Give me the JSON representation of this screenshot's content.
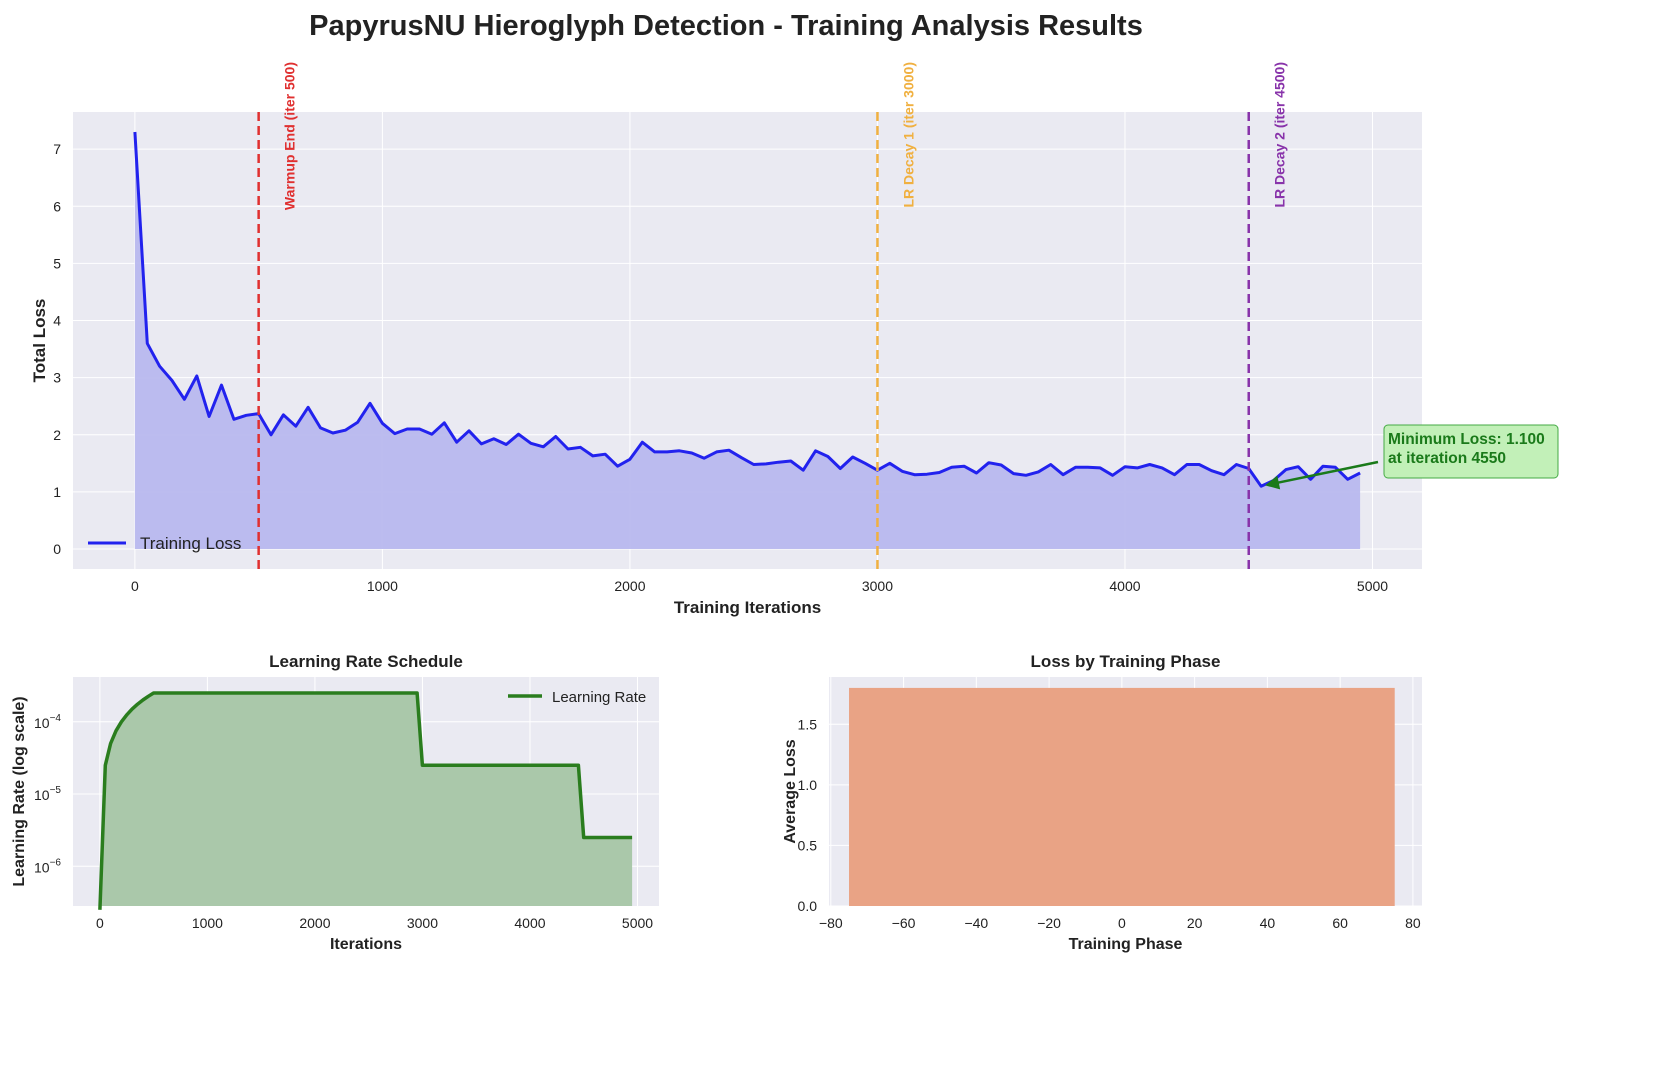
{
  "figure": {
    "title": "PapyrusNU Hieroglyph Detection - Training Analysis Results"
  },
  "chart_data": [
    {
      "type": "area",
      "xlabel": "Training Iterations",
      "ylabel": "Total Loss",
      "xlim": [
        -250,
        5200
      ],
      "ylim": [
        -0.35,
        7.65
      ],
      "xticks": [
        0,
        1000,
        2000,
        3000,
        4000,
        5000
      ],
      "yticks": [
        0,
        1,
        2,
        3,
        4,
        5,
        6,
        7
      ],
      "grid": true,
      "legend": {
        "placement": "lower-left",
        "entries": [
          "Training Loss"
        ]
      },
      "series": [
        {
          "name": "Training Loss",
          "color": "#2222ee",
          "fill": "#b8b8ee",
          "x": [
            0,
            50,
            100,
            150,
            200,
            250,
            300,
            350,
            400,
            450,
            500,
            550,
            600,
            650,
            700,
            750,
            800,
            850,
            900,
            950,
            1000,
            1050,
            1100,
            1150,
            1200,
            1250,
            1300,
            1350,
            1400,
            1450,
            1500,
            1550,
            1600,
            1650,
            1700,
            1750,
            1800,
            1850,
            1900,
            1950,
            2000,
            2050,
            2100,
            2150,
            2200,
            2250,
            2300,
            2350,
            2400,
            2450,
            2500,
            2550,
            2600,
            2650,
            2700,
            2750,
            2800,
            2850,
            2900,
            2950,
            3000,
            3050,
            3100,
            3150,
            3200,
            3250,
            3300,
            3350,
            3400,
            3450,
            3500,
            3550,
            3600,
            3650,
            3700,
            3750,
            3800,
            3850,
            3900,
            3950,
            4000,
            4050,
            4100,
            4150,
            4200,
            4250,
            4300,
            4350,
            4400,
            4450,
            4500,
            4550,
            4600,
            4650,
            4700,
            4750,
            4800,
            4850,
            4900,
            4950
          ],
          "values": [
            7.3,
            3.6,
            3.2,
            2.95,
            2.62,
            3.03,
            2.32,
            2.87,
            2.27,
            2.34,
            2.37,
            2.0,
            2.35,
            2.15,
            2.48,
            2.12,
            2.03,
            2.08,
            2.22,
            2.55,
            2.2,
            2.02,
            2.1,
            2.1,
            2.01,
            2.21,
            1.87,
            2.07,
            1.84,
            1.93,
            1.83,
            2.01,
            1.85,
            1.79,
            1.97,
            1.75,
            1.78,
            1.63,
            1.66,
            1.45,
            1.57,
            1.87,
            1.7,
            1.7,
            1.72,
            1.68,
            1.59,
            1.7,
            1.73,
            1.6,
            1.48,
            1.49,
            1.52,
            1.54,
            1.38,
            1.72,
            1.62,
            1.41,
            1.61,
            1.5,
            1.38,
            1.5,
            1.36,
            1.3,
            1.31,
            1.34,
            1.43,
            1.45,
            1.33,
            1.51,
            1.47,
            1.32,
            1.29,
            1.35,
            1.48,
            1.3,
            1.43,
            1.43,
            1.42,
            1.29,
            1.44,
            1.42,
            1.48,
            1.42,
            1.3,
            1.48,
            1.48,
            1.37,
            1.3,
            1.48,
            1.41,
            1.1,
            1.2,
            1.39,
            1.44,
            1.22,
            1.45,
            1.43,
            1.22,
            1.33
          ]
        }
      ],
      "vlines": [
        {
          "x": 500,
          "label": "Warmup End (iter 500)",
          "color": "#e03030"
        },
        {
          "x": 3000,
          "label": "LR Decay 1 (iter 3000)",
          "color": "#f0b040"
        },
        {
          "x": 4500,
          "label": "LR Decay 2 (iter 4500)",
          "color": "#8833aa"
        }
      ],
      "annotation": {
        "line1": "Minimum Loss: 1.100",
        "line2": "at iteration 4550",
        "point": {
          "x": 4550,
          "y": 1.1
        },
        "text_color": "#1a7a1a",
        "box_fill": "#c2f0b8",
        "box_border": "#44aa44"
      }
    },
    {
      "type": "area",
      "title": "Learning Rate Schedule",
      "xlabel": "Iterations",
      "ylabel": "Learning Rate (log scale)",
      "yscale": "log",
      "xlim": [
        -250,
        5200
      ],
      "ylim_log10": [
        -6.55,
        -3.38
      ],
      "xticks": [
        0,
        1000,
        2000,
        3000,
        4000,
        5000
      ],
      "yticks_exp": [
        -6,
        -5,
        -4
      ],
      "grid": true,
      "legend": {
        "placement": "top-right",
        "entries": [
          "Learning Rate"
        ]
      },
      "series": [
        {
          "name": "Learning Rate",
          "color": "#2a7d1e",
          "fill": "#aac8aa",
          "x": [
            0,
            50,
            100,
            150,
            200,
            250,
            300,
            350,
            400,
            450,
            500,
            2950,
            3000,
            4450,
            4500,
            4950
          ],
          "values": [
            2.5e-07,
            2.5e-05,
            5e-05,
            7.5e-05,
            0.0001,
            0.000125,
            0.00015,
            0.000175,
            0.0002,
            0.000225,
            0.00025,
            0.00025,
            2.5e-05,
            2.5e-05,
            2.5e-06,
            2.5e-06
          ]
        }
      ]
    },
    {
      "type": "bar",
      "title": "Loss by Training Phase",
      "xlabel": "Training Phase",
      "ylabel": "Average Loss",
      "xlim": [
        -80.5,
        82.5
      ],
      "ylim": [
        0,
        1.89
      ],
      "xticks": [
        -80,
        -60,
        -40,
        -20,
        0,
        20,
        40,
        60,
        80
      ],
      "yticks": [
        0.0,
        0.5,
        1.0,
        1.5
      ],
      "grid": true,
      "bars": [
        {
          "x0": -75,
          "x1": 75,
          "value": 1.8,
          "color": "#e9a385"
        }
      ]
    }
  ]
}
